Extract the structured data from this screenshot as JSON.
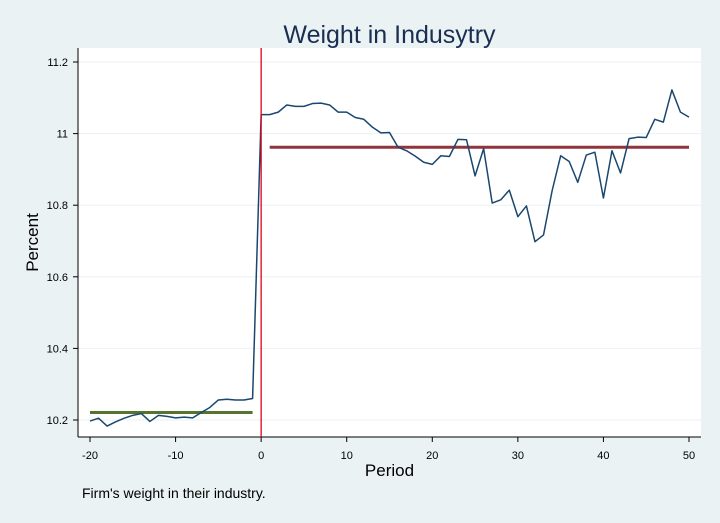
{
  "chart_data": {
    "type": "line",
    "title": "Weight in Indusytry",
    "xlabel": "Period",
    "ylabel": "Percent",
    "note": "Firm's weight in their industry.",
    "xlim": [
      -20,
      50
    ],
    "ylim": [
      10.2,
      11.2
    ],
    "xticks": [
      -20,
      -10,
      0,
      10,
      20,
      30,
      40,
      50
    ],
    "yticks": [
      10.2,
      10.4,
      10.6,
      10.8,
      11,
      11.2
    ],
    "ytick_labels": [
      "10.2",
      "10.4",
      "10.6",
      "10.8",
      "11",
      "11.2"
    ],
    "grid": true,
    "legend": "none",
    "colors": {
      "series": "#1a476f",
      "event_line": "#e2001a",
      "pre_mean": "#55752f",
      "post_mean": "#90353b",
      "background": "#eaf2f3",
      "plot_background": "#ffffff",
      "grid": "#eaf2f3"
    },
    "series": [
      {
        "x": [
          -20,
          -19,
          -18,
          -17,
          -16,
          -15,
          -14,
          -13,
          -12,
          -11,
          -10,
          -9,
          -8,
          -7,
          -6,
          -5,
          -4,
          -3,
          -2,
          -1,
          0,
          1,
          2,
          3,
          4,
          5,
          6,
          7,
          8,
          9,
          10,
          11,
          12,
          13,
          14,
          15,
          16,
          17,
          18,
          19,
          20,
          21,
          22,
          23,
          24,
          25,
          26,
          27,
          28,
          29,
          30,
          31,
          32,
          33,
          34,
          35,
          36,
          37,
          38,
          39,
          40,
          41,
          42,
          43,
          44,
          45,
          46,
          47,
          48,
          49,
          50
        ],
        "values": [
          10.197,
          10.205,
          10.183,
          10.195,
          10.205,
          10.213,
          10.218,
          10.196,
          10.213,
          10.21,
          10.206,
          10.208,
          10.206,
          10.221,
          10.235,
          10.256,
          10.258,
          10.256,
          10.256,
          10.26,
          11.053,
          11.053,
          11.06,
          11.08,
          11.076,
          11.076,
          11.084,
          11.085,
          11.08,
          11.06,
          11.06,
          11.045,
          11.04,
          11.018,
          11.002,
          11.003,
          10.962,
          10.952,
          10.937,
          10.92,
          10.914,
          10.938,
          10.936,
          10.984,
          10.983,
          10.882,
          10.958,
          10.806,
          10.815,
          10.842,
          10.768,
          10.798,
          10.698,
          10.717,
          10.84,
          10.938,
          10.922,
          10.864,
          10.94,
          10.948,
          10.82,
          10.952,
          10.89,
          10.986,
          10.99,
          10.989,
          11.04,
          11.032,
          11.122,
          11.06,
          11.046
        ]
      }
    ],
    "event_line_x": 0,
    "reference_lines": [
      {
        "x_from": -20,
        "x_to": -1,
        "y": 10.221
      },
      {
        "x_from": 1,
        "x_to": 50,
        "y": 10.962
      }
    ]
  }
}
